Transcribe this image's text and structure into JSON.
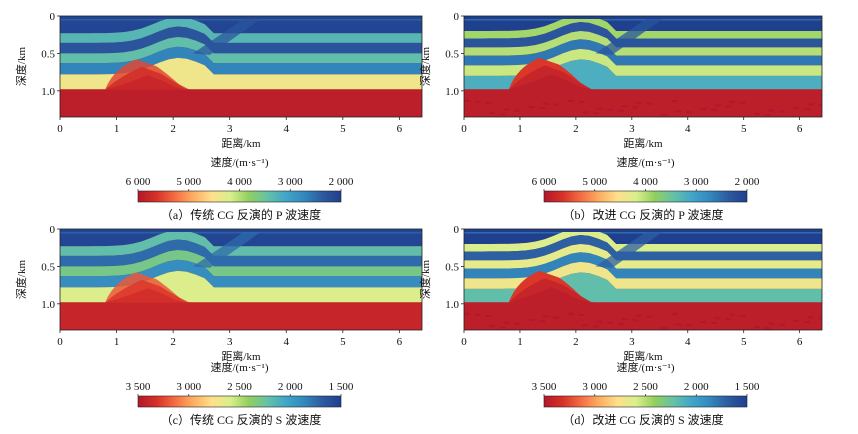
{
  "chart_data": [
    {
      "id": "a",
      "type": "heatmap",
      "title": "（a）传统 CG 反演的 P 波速度",
      "xlabel": "距离/km",
      "ylabel": "深度/km",
      "xlim": [
        0,
        6.4
      ],
      "ylim": [
        0,
        1.35
      ],
      "xticks": [
        0,
        1,
        2,
        3,
        4,
        5,
        6
      ],
      "yticks": [
        0,
        0.5,
        1.0
      ],
      "ytick_labels": [
        "0",
        "0.5",
        "1.0"
      ],
      "colorbar": {
        "label": "速度/(m·s⁻¹)",
        "range": [
          6000,
          2000
        ],
        "ticks": [
          6000,
          5000,
          4000,
          3000,
          2000
        ],
        "tick_labels": [
          "6 000",
          "5 000",
          "4 000",
          "3 000",
          "2 000"
        ]
      },
      "model": {
        "layer_depths_km": [
          0.06,
          0.23,
          0.36,
          0.5,
          0.63,
          0.78,
          0.98
        ],
        "layer_velocities": [
          2400,
          2100,
          3300,
          2300,
          3400,
          2700,
          4400,
          5900
        ],
        "top_layer_value": 2100,
        "bottom_value": 5900,
        "fault_x_km": 2.35,
        "wedge_depths_km": [
          0.72,
          0.82,
          0.93
        ],
        "wedge_values": [
          5500,
          5700,
          5800
        ],
        "sharp": false
      }
    },
    {
      "id": "b",
      "type": "heatmap",
      "title": "（b）改进 CG 反演的 P 波速度",
      "xlabel": "距离/km",
      "ylabel": "深度/km",
      "xlim": [
        0,
        6.4
      ],
      "ylim": [
        0,
        1.35
      ],
      "xticks": [
        0,
        1,
        2,
        3,
        4,
        5,
        6
      ],
      "yticks": [
        0,
        0.5,
        1.0
      ],
      "ytick_labels": [
        "0",
        "0.5",
        "1.0"
      ],
      "colorbar": {
        "label": "速度/(m·s⁻¹)",
        "range": [
          6000,
          2000
        ],
        "ticks": [
          6000,
          5000,
          4000,
          3000,
          2000
        ],
        "tick_labels": [
          "6 000",
          "5 000",
          "4 000",
          "3 000",
          "2 000"
        ]
      },
      "model": {
        "layer_depths_km": [
          0.06,
          0.2,
          0.3,
          0.42,
          0.53,
          0.66,
          0.8,
          0.98,
          1.1
        ],
        "layer_velocities": [
          2500,
          2000,
          3900,
          2300,
          4000,
          2600,
          4100,
          3200,
          5000,
          5900
        ],
        "top_layer_value": 2000,
        "bottom_value": 5900,
        "fault_x_km": 2.35,
        "wedge_depths_km": [
          0.7,
          0.8,
          0.92
        ],
        "wedge_values": [
          5600,
          5800,
          5900
        ],
        "sharp": true
      }
    },
    {
      "id": "c",
      "type": "heatmap",
      "title": "（c）传统 CG 反演的 S 波速度",
      "xlabel": "距离/km",
      "ylabel": "深度/km",
      "xlim": [
        0,
        6.4
      ],
      "ylim": [
        0,
        1.35
      ],
      "xticks": [
        0,
        1,
        2,
        3,
        4,
        5,
        6
      ],
      "yticks": [
        0,
        0.5,
        1.0
      ],
      "ytick_labels": [
        "0",
        "0.5",
        "1.0"
      ],
      "colorbar": {
        "label": "速度/(m·s⁻¹)",
        "range": [
          3500,
          1500
        ],
        "ticks": [
          3500,
          3000,
          2500,
          2000,
          1500
        ],
        "tick_labels": [
          "3 500",
          "3 000",
          "2 500",
          "2 000",
          "1 500"
        ]
      },
      "model": {
        "layer_depths_km": [
          0.06,
          0.23,
          0.36,
          0.5,
          0.63,
          0.78,
          0.98
        ],
        "layer_velocities": [
          1700,
          1550,
          2200,
          1750,
          2300,
          1900,
          2600,
          3400
        ],
        "top_layer_value": 1550,
        "bottom_value": 3400,
        "fault_x_km": 2.35,
        "wedge_depths_km": [
          0.72,
          0.82,
          0.93
        ],
        "wedge_values": [
          3200,
          3300,
          3350
        ],
        "sharp": false
      }
    },
    {
      "id": "d",
      "type": "heatmap",
      "title": "（d）改进 CG 反演的 S 波速度",
      "xlabel": "距离/km",
      "ylabel": "深度/km",
      "xlim": [
        0,
        6.4
      ],
      "ylim": [
        0,
        1.35
      ],
      "xticks": [
        0,
        1,
        2,
        3,
        4,
        5,
        6
      ],
      "yticks": [
        0,
        0.5,
        1.0
      ],
      "ytick_labels": [
        "0",
        "0.5",
        "1.0"
      ],
      "colorbar": {
        "label": "速度/(m·s⁻¹)",
        "range": [
          3500,
          1500
        ],
        "ticks": [
          3500,
          3000,
          2500,
          2000,
          1500
        ],
        "tick_labels": [
          "3 500",
          "3 000",
          "2 500",
          "2 000",
          "1 500"
        ]
      },
      "model": {
        "layer_depths_km": [
          0.06,
          0.2,
          0.3,
          0.42,
          0.53,
          0.66,
          0.8,
          0.98,
          1.1
        ],
        "layer_velocities": [
          1750,
          1500,
          2600,
          1700,
          2650,
          1850,
          2700,
          2200,
          3100,
          3450
        ],
        "top_layer_value": 1500,
        "bottom_value": 3450,
        "fault_x_km": 2.35,
        "wedge_depths_km": [
          0.7,
          0.8,
          0.92
        ],
        "wedge_values": [
          3300,
          3400,
          3450
        ],
        "sharp": true
      }
    }
  ],
  "colormap": [
    "#b2182b",
    "#d73027",
    "#f46d43",
    "#fdae61",
    "#fee08b",
    "#d9ef8b",
    "#91cf60",
    "#66c2a5",
    "#41a6c9",
    "#3288bd",
    "#2c5aa0",
    "#1f3f8f"
  ]
}
